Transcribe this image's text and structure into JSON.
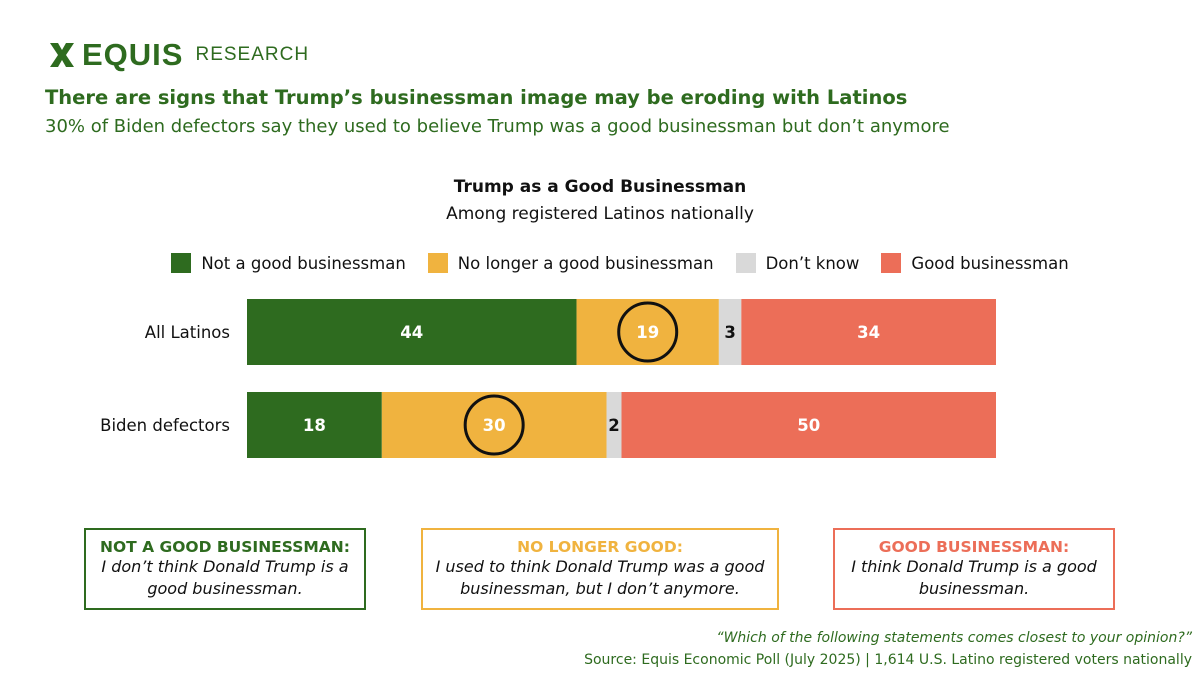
{
  "brand": {
    "name": "EQUIS",
    "tagline": "RESEARCH",
    "color": "#2e6b1f"
  },
  "headline": "There are signs that Trump’s businessman image may be eroding with Latinos",
  "subheadline": "30% of Biden defectors say they used to believe Trump was a good businessman but don’t anymore",
  "legend": [
    {
      "label": "Not a good businessman",
      "color": "#2e6b1f"
    },
    {
      "label": "No longer a good businessman",
      "color": "#f0b33f"
    },
    {
      "label": "Don’t know",
      "color": "#d9d9d9"
    },
    {
      "label": "Good businessman",
      "color": "#ec6e58"
    }
  ],
  "chart_data": {
    "type": "bar",
    "orientation": "horizontal",
    "stacked": true,
    "title": "Trump as a Good Businessman",
    "subtitle": "Among registered Latinos nationally",
    "categories": [
      "All Latinos",
      "Biden defectors"
    ],
    "series": [
      {
        "name": "Not a good businessman",
        "values": [
          44,
          18
        ],
        "color": "#2e6b1f",
        "label_color": "#ffffff"
      },
      {
        "name": "No longer a good businessman",
        "values": [
          19,
          30
        ],
        "color": "#f0b33f",
        "label_color": "#ffffff",
        "circled": true
      },
      {
        "name": "Don’t know",
        "values": [
          3,
          2
        ],
        "color": "#d9d9d9",
        "label_color": "#111111"
      },
      {
        "name": "Good businessman",
        "values": [
          34,
          50
        ],
        "color": "#ec6e58",
        "label_color": "#ffffff"
      }
    ],
    "xlim": [
      0,
      100
    ]
  },
  "definitions": [
    {
      "heading": "NOT A GOOD BUSINESSMAN:",
      "text": "I don’t think Donald Trump is a good businessman.",
      "color": "#2e6b1f"
    },
    {
      "heading": "NO LONGER GOOD:",
      "text": "I used to think Donald Trump was a good businessman, but I don’t anymore.",
      "color": "#f0b33f"
    },
    {
      "heading": "GOOD BUSINESSMAN:",
      "text": "I think Donald Trump is a good businessman.",
      "color": "#ec6e58"
    }
  ],
  "footer": {
    "question": "“Which of the following statements comes closest to your opinion?”",
    "source": "Source: Equis Economic Poll (July 2025) | 1,614 U.S. Latino registered voters nationally"
  }
}
